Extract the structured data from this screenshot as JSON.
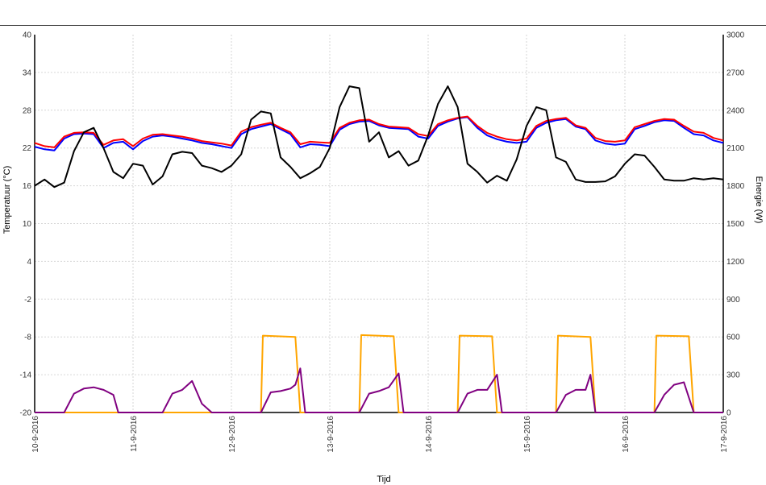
{
  "chart_data": {
    "type": "line",
    "xlabel": "Tijd",
    "ylabel_left": "Temperatuur (°C)",
    "ylabel_right": "Energie (W)",
    "ylim_left": [
      -20,
      40
    ],
    "ylim_right": [
      0,
      3000
    ],
    "yticks_left": [
      "40",
      "34",
      "28",
      "22",
      "16",
      "10",
      "4",
      "-2",
      "-8",
      "-14",
      "-20"
    ],
    "yticks_right": [
      "3000",
      "2700",
      "2400",
      "2100",
      "1800",
      "1500",
      "1200",
      "900",
      "600",
      "300",
      "0"
    ],
    "x_categories": [
      "10-9-2016",
      "11-9-2016",
      "12-9-2016",
      "13-9-2016",
      "14-9-2016",
      "15-9-2016",
      "16-9-2016",
      "17-9-2016"
    ],
    "grid": true,
    "colors": {
      "blue": "#0000ff",
      "red": "#ff0000",
      "black": "#000000",
      "orange": "#ffa500",
      "purple": "#800080"
    },
    "series": [
      {
        "color": "blue",
        "axis": "left",
        "x": [
          0,
          0.1,
          0.2,
          0.3,
          0.4,
          0.5,
          0.6,
          0.7,
          0.8,
          0.9,
          1.0,
          1.1,
          1.2,
          1.3,
          1.4,
          1.5,
          1.6,
          1.7,
          1.8,
          1.9,
          2.0,
          2.1,
          2.2,
          2.3,
          2.4,
          2.5,
          2.6,
          2.7,
          2.8,
          2.9,
          3.0,
          3.1,
          3.2,
          3.3,
          3.4,
          3.5,
          3.6,
          3.7,
          3.8,
          3.9,
          4.0,
          4.1,
          4.2,
          4.3,
          4.4,
          4.5,
          4.6,
          4.7,
          4.8,
          4.9,
          5.0,
          5.1,
          5.2,
          5.3,
          5.4,
          5.5,
          5.6,
          5.7,
          5.8,
          5.9,
          6.0,
          6.1,
          6.2,
          6.3,
          6.4,
          6.5,
          6.6,
          6.7,
          6.8,
          6.9,
          7.0
        ],
        "y": [
          22.2,
          21.8,
          21.6,
          23.5,
          24.2,
          24.3,
          24.2,
          22.0,
          22.8,
          23.0,
          21.8,
          23.1,
          23.8,
          24.0,
          23.8,
          23.5,
          23.2,
          22.8,
          22.6,
          22.3,
          22.0,
          24.2,
          25.0,
          25.4,
          25.8,
          25.0,
          24.2,
          22.1,
          22.6,
          22.5,
          22.3,
          24.9,
          25.8,
          26.2,
          26.3,
          25.6,
          25.2,
          25.1,
          25.0,
          23.8,
          23.5,
          25.5,
          26.2,
          26.7,
          26.9,
          25.2,
          24.0,
          23.4,
          23.0,
          22.8,
          23.0,
          25.2,
          26.0,
          26.4,
          26.6,
          25.4,
          25.0,
          23.2,
          22.7,
          22.5,
          22.7,
          25.0,
          25.5,
          26.1,
          26.4,
          26.3,
          25.2,
          24.2,
          24.0,
          23.2,
          22.8
        ]
      },
      {
        "color": "red",
        "axis": "left",
        "x": [
          0,
          0.1,
          0.2,
          0.3,
          0.4,
          0.5,
          0.6,
          0.7,
          0.8,
          0.9,
          1.0,
          1.1,
          1.2,
          1.3,
          1.4,
          1.5,
          1.6,
          1.7,
          1.8,
          1.9,
          2.0,
          2.1,
          2.2,
          2.3,
          2.4,
          2.5,
          2.6,
          2.7,
          2.8,
          2.9,
          3.0,
          3.1,
          3.2,
          3.3,
          3.4,
          3.5,
          3.6,
          3.7,
          3.8,
          3.9,
          4.0,
          4.1,
          4.2,
          4.3,
          4.4,
          4.5,
          4.6,
          4.7,
          4.8,
          4.9,
          5.0,
          5.1,
          5.2,
          5.3,
          5.4,
          5.5,
          5.6,
          5.7,
          5.8,
          5.9,
          6.0,
          6.1,
          6.2,
          6.3,
          6.4,
          6.5,
          6.6,
          6.7,
          6.8,
          6.9,
          7.0
        ],
        "y": [
          22.8,
          22.3,
          22.1,
          23.8,
          24.4,
          24.5,
          24.4,
          22.5,
          23.2,
          23.4,
          22.3,
          23.5,
          24.1,
          24.2,
          24.0,
          23.8,
          23.5,
          23.1,
          22.9,
          22.7,
          22.4,
          24.6,
          25.3,
          25.7,
          26.0,
          25.2,
          24.5,
          22.6,
          23.0,
          22.9,
          22.8,
          25.2,
          26.0,
          26.4,
          26.5,
          25.8,
          25.4,
          25.3,
          25.2,
          24.2,
          23.9,
          25.8,
          26.4,
          26.8,
          27.0,
          25.5,
          24.4,
          23.8,
          23.4,
          23.2,
          23.5,
          25.5,
          26.3,
          26.6,
          26.8,
          25.6,
          25.2,
          23.6,
          23.1,
          23.0,
          23.2,
          25.3,
          25.8,
          26.3,
          26.6,
          26.5,
          25.5,
          24.6,
          24.4,
          23.6,
          23.2
        ]
      },
      {
        "color": "black",
        "axis": "left",
        "x": [
          0,
          0.1,
          0.2,
          0.3,
          0.4,
          0.5,
          0.6,
          0.7,
          0.8,
          0.9,
          1.0,
          1.1,
          1.2,
          1.3,
          1.4,
          1.5,
          1.6,
          1.7,
          1.8,
          1.9,
          2.0,
          2.1,
          2.2,
          2.3,
          2.4,
          2.5,
          2.6,
          2.7,
          2.8,
          2.9,
          3.0,
          3.1,
          3.2,
          3.3,
          3.4,
          3.5,
          3.6,
          3.7,
          3.8,
          3.9,
          4.0,
          4.1,
          4.2,
          4.3,
          4.4,
          4.5,
          4.6,
          4.7,
          4.8,
          4.9,
          5.0,
          5.1,
          5.2,
          5.3,
          5.4,
          5.5,
          5.6,
          5.7,
          5.8,
          5.9,
          6.0,
          6.1,
          6.2,
          6.3,
          6.4,
          6.5,
          6.6,
          6.7,
          6.8,
          6.9,
          7.0
        ],
        "y": [
          16.0,
          17.0,
          15.8,
          16.5,
          21.5,
          24.5,
          25.2,
          22.0,
          18.2,
          17.2,
          19.5,
          19.2,
          16.2,
          17.5,
          21.0,
          21.4,
          21.2,
          19.2,
          18.8,
          18.2,
          19.2,
          21.0,
          26.5,
          27.8,
          27.5,
          20.5,
          19.0,
          17.2,
          18.0,
          19.0,
          22.0,
          28.5,
          31.8,
          31.5,
          23.0,
          24.5,
          20.5,
          21.5,
          19.2,
          20.0,
          24.0,
          29.0,
          31.8,
          28.5,
          19.5,
          18.2,
          16.5,
          17.6,
          16.8,
          20.2,
          25.5,
          28.5,
          28.0,
          20.5,
          19.8,
          17.0,
          16.6,
          16.6,
          16.7,
          17.5,
          19.5,
          21.0,
          20.8,
          19.0,
          17.0,
          16.8,
          16.8,
          17.2,
          17.0,
          17.2,
          17.0
        ]
      },
      {
        "color": "orange",
        "axis": "right",
        "x": [
          0,
          2.3,
          2.32,
          2.65,
          2.7,
          3.3,
          3.32,
          3.65,
          3.7,
          4.3,
          4.32,
          4.65,
          4.7,
          5.3,
          5.32,
          5.65,
          5.7,
          6.3,
          6.32,
          6.65,
          6.7,
          7.0
        ],
        "y": [
          0,
          0,
          610,
          600,
          0,
          0,
          615,
          605,
          0,
          0,
          610,
          605,
          0,
          0,
          610,
          600,
          0,
          0,
          610,
          605,
          0,
          0
        ]
      },
      {
        "color": "purple",
        "axis": "right",
        "x": [
          0,
          0.3,
          0.4,
          0.5,
          0.6,
          0.7,
          0.8,
          0.85,
          0.9,
          1.3,
          1.4,
          1.5,
          1.6,
          1.7,
          1.8,
          1.85,
          2.3,
          2.4,
          2.5,
          2.6,
          2.65,
          2.7,
          2.75,
          2.8,
          3.3,
          3.4,
          3.5,
          3.6,
          3.7,
          3.75,
          3.8,
          4.3,
          4.4,
          4.5,
          4.6,
          4.7,
          4.75,
          4.8,
          5.3,
          5.4,
          5.5,
          5.6,
          5.65,
          5.7,
          5.8,
          6.3,
          6.4,
          6.5,
          6.6,
          6.7,
          6.75,
          6.8,
          6.9,
          7.0
        ],
        "y": [
          0,
          0,
          150,
          190,
          200,
          180,
          140,
          0,
          0,
          0,
          150,
          180,
          250,
          70,
          0,
          0,
          0,
          160,
          170,
          190,
          220,
          350,
          0,
          0,
          0,
          150,
          170,
          200,
          310,
          0,
          0,
          0,
          150,
          180,
          180,
          300,
          0,
          0,
          0,
          140,
          180,
          180,
          300,
          0,
          0,
          0,
          140,
          220,
          240,
          0,
          0,
          0,
          0,
          0
        ]
      }
    ]
  }
}
